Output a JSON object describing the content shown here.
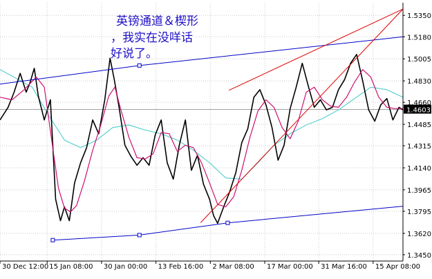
{
  "annotation": {
    "lines": [
      "英镑通道＆楔形",
      "，我实在没咩话",
      "好说了。"
    ]
  },
  "current_price_label": "1.4603",
  "colors": {
    "price": "#000000",
    "ma_fast": "#cc1070",
    "ma_slow": "#5fd0d0",
    "channel": "#0000c8",
    "wedge": "#e00000",
    "grid": "#c8c8c8",
    "note_text": "#2010c8"
  },
  "chart_data": {
    "type": "line",
    "title": "",
    "grid": true,
    "y_axis_side": "right",
    "ylim": [
      1.34,
      1.545
    ],
    "y_ticks": [
      "1.5350",
      "1.5180",
      "1.5005",
      "1.4830",
      "1.4660",
      "1.4485",
      "1.4315",
      "1.4140",
      "1.3965",
      "1.3795",
      "1.3620",
      "1.3450"
    ],
    "x_tick_labels": [
      "30 Dec 12:00",
      "15 Jan 08:00",
      "30 Jan 00:00",
      "13 Feb 16:00",
      "2 Mar 08:00",
      "17 Mar 00:00",
      "31 Mar 16:00",
      "15 Apr 08:00"
    ],
    "x_range": [
      0,
      100
    ],
    "x_ticks": [
      0,
      11.7,
      25.2,
      38.7,
      52.2,
      65.7,
      79.1,
      92.6
    ],
    "series": [
      {
        "role": "price",
        "x": [
          0,
          2,
          3.5,
          5,
          6.5,
          7.5,
          8.5,
          9.5,
          11,
          12.5,
          13.8,
          15,
          16,
          17.2,
          18.5,
          20,
          21.5,
          23,
          24.5,
          26,
          27.3,
          28.3,
          29.5,
          31,
          32.5,
          34,
          35.5,
          37,
          38.5,
          40,
          41.5,
          43,
          44.5,
          46,
          47.5,
          49,
          50.5,
          52,
          53,
          54,
          55.5,
          57,
          58.5,
          60,
          61.5,
          63,
          64.5,
          66,
          67.5,
          69,
          70.5,
          72,
          73.5,
          75,
          76.5,
          78,
          79.5,
          81,
          82.5,
          84,
          85.5,
          87,
          88.5,
          90,
          91.5,
          93,
          94.5,
          96,
          97.5,
          99,
          100
        ],
        "y": [
          1.452,
          1.462,
          1.474,
          1.489,
          1.474,
          1.482,
          1.493,
          1.471,
          1.452,
          1.468,
          1.389,
          1.372,
          1.383,
          1.372,
          1.402,
          1.418,
          1.43,
          1.452,
          1.441,
          1.468,
          1.501,
          1.485,
          1.463,
          1.432,
          1.423,
          1.416,
          1.422,
          1.416,
          1.44,
          1.452,
          1.418,
          1.405,
          1.432,
          1.452,
          1.412,
          1.424,
          1.401,
          1.389,
          1.376,
          1.37,
          1.383,
          1.395,
          1.41,
          1.434,
          1.445,
          1.47,
          1.476,
          1.464,
          1.446,
          1.42,
          1.432,
          1.461,
          1.478,
          1.497,
          1.479,
          1.462,
          1.468,
          1.46,
          1.462,
          1.476,
          1.484,
          1.497,
          1.504,
          1.483,
          1.46,
          1.451,
          1.464,
          1.469,
          1.452,
          1.462,
          1.46
        ]
      },
      {
        "role": "ma_fast",
        "x": [
          0,
          3,
          6,
          9,
          11,
          13,
          14.5,
          16,
          17.5,
          19,
          21,
          23,
          25,
          27,
          28.5,
          30,
          32,
          34,
          36,
          38,
          40,
          42,
          44,
          46,
          48,
          50,
          52,
          54,
          56,
          58,
          60,
          62,
          64,
          66,
          68,
          70,
          72,
          74,
          76,
          78,
          80,
          82,
          84,
          86,
          88,
          90,
          92,
          94,
          96,
          98,
          100
        ],
        "y": [
          1.47,
          1.468,
          1.476,
          1.486,
          1.478,
          1.432,
          1.398,
          1.382,
          1.379,
          1.384,
          1.404,
          1.428,
          1.448,
          1.471,
          1.478,
          1.46,
          1.438,
          1.422,
          1.421,
          1.425,
          1.442,
          1.441,
          1.427,
          1.432,
          1.43,
          1.418,
          1.402,
          1.385,
          1.383,
          1.391,
          1.412,
          1.438,
          1.459,
          1.468,
          1.462,
          1.446,
          1.437,
          1.451,
          1.474,
          1.478,
          1.468,
          1.463,
          1.462,
          1.47,
          1.482,
          1.492,
          1.486,
          1.47,
          1.462,
          1.461,
          1.461
        ]
      },
      {
        "role": "ma_slow",
        "x": [
          0,
          4,
          8,
          12,
          16,
          20,
          24,
          28,
          32,
          36,
          40,
          44,
          48,
          52,
          56,
          60,
          64,
          68,
          72,
          76,
          80,
          84,
          88,
          92,
          96,
          100
        ],
        "y": [
          1.492,
          1.485,
          1.478,
          1.456,
          1.436,
          1.43,
          1.436,
          1.446,
          1.448,
          1.444,
          1.441,
          1.436,
          1.428,
          1.418,
          1.406,
          1.405,
          1.418,
          1.432,
          1.441,
          1.448,
          1.453,
          1.46,
          1.469,
          1.478,
          1.476,
          1.47
        ]
      }
    ],
    "trend_lines": [
      {
        "role": "channel_upper",
        "x": [
          0,
          34.6,
          100
        ],
        "y": [
          1.4805,
          1.4952,
          1.518
        ],
        "handles": [
          1
        ]
      },
      {
        "role": "channel_lower",
        "x": [
          13.1,
          34.6,
          56.5,
          100
        ],
        "y": [
          1.3566,
          1.3606,
          1.3703,
          1.3835
        ],
        "handles": [
          0,
          1,
          2
        ]
      },
      {
        "role": "wedge_upper",
        "x": [
          56.8,
          100
        ],
        "y": [
          1.4755,
          1.54
        ]
      },
      {
        "role": "wedge_lower",
        "x": [
          49.8,
          100
        ],
        "y": [
          1.3705,
          1.54
        ]
      }
    ],
    "last_price": 1.4603
  }
}
